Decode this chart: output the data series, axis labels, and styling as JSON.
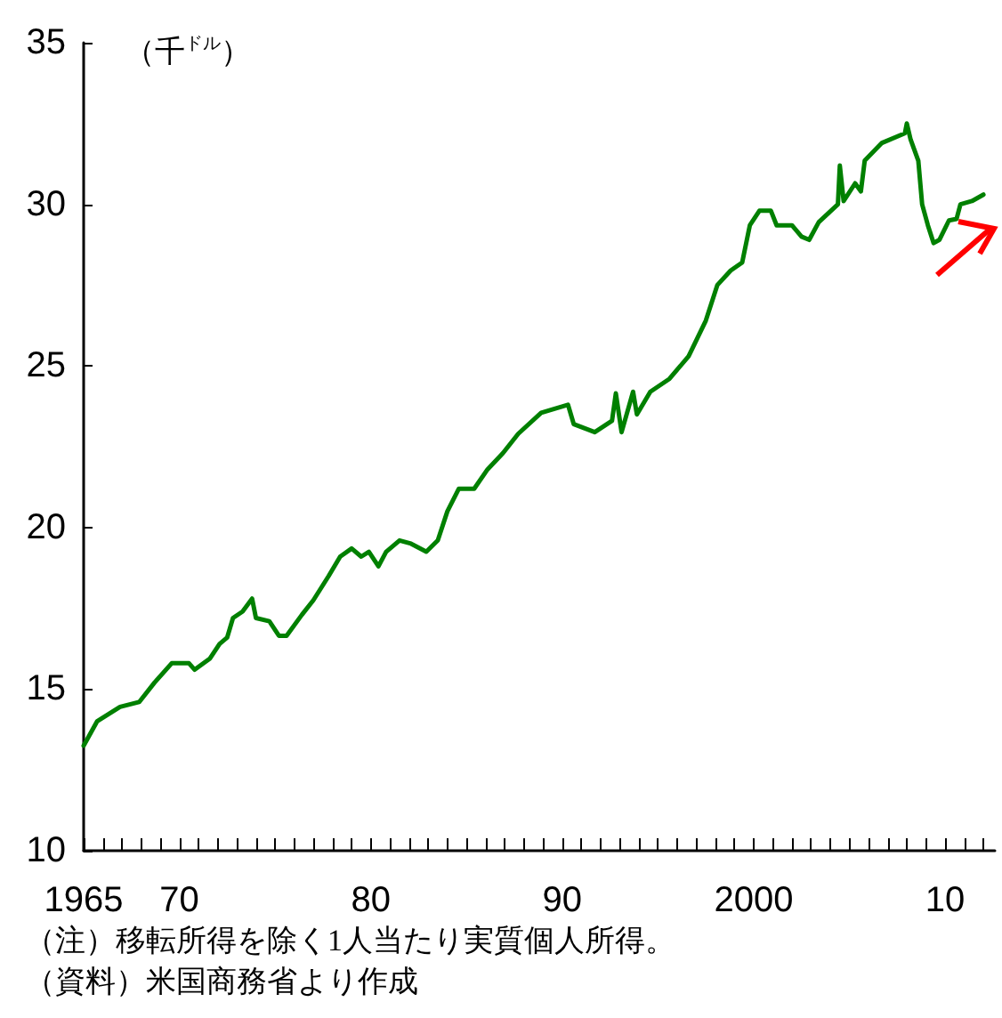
{
  "chart_data": {
    "type": "line",
    "ylabel": "（千$^{ドル}$）",
    "x": [
      1965.0,
      1965.7,
      1966.9,
      1967.9,
      1968.7,
      1969.6,
      1970.5,
      1970.8,
      1971.6,
      1972.1,
      1972.5,
      1972.8,
      1973.3,
      1973.8,
      1974.0,
      1974.7,
      1975.2,
      1975.6,
      1976.4,
      1977.0,
      1977.8,
      1978.4,
      1979.0,
      1979.5,
      1979.9,
      1980.4,
      1980.8,
      1981.5,
      1982.1,
      1982.9,
      1983.5,
      1984.0,
      1984.6,
      1985.4,
      1986.1,
      1986.9,
      1987.7,
      1988.9,
      1990.3,
      1990.6,
      1991.7,
      1992.6,
      1992.8,
      1993.1,
      1993.7,
      1993.9,
      1994.6,
      1995.6,
      1996.6,
      1997.5,
      1998.1,
      1998.8,
      1999.4,
      1999.8,
      2000.3,
      2000.9,
      2001.2,
      2002.0,
      2002.5,
      2002.9,
      2003.4,
      2004.4,
      2004.5,
      2004.7,
      2005.3,
      2005.6,
      2005.8,
      2006.7,
      2007.9,
      2008.0,
      2008.2,
      2008.6,
      2008.8,
      2009.1,
      2009.4,
      2009.7,
      2010.2,
      2010.6,
      2010.8,
      2011.4,
      2012.0
    ],
    "series": [
      {
        "color": "#008000",
        "values": [
          13.25,
          14.0,
          14.45,
          14.6,
          15.2,
          15.8,
          15.8,
          15.6,
          15.95,
          16.4,
          16.6,
          17.2,
          17.4,
          17.8,
          17.2,
          17.1,
          16.65,
          16.65,
          17.3,
          17.75,
          18.5,
          19.1,
          19.35,
          19.1,
          19.25,
          18.8,
          19.25,
          19.6,
          19.5,
          19.25,
          19.6,
          20.5,
          21.2,
          21.2,
          21.8,
          22.3,
          22.9,
          23.55,
          23.8,
          23.2,
          22.95,
          23.3,
          24.15,
          22.95,
          24.2,
          23.5,
          24.2,
          24.6,
          25.3,
          26.4,
          27.5,
          27.95,
          28.2,
          29.35,
          29.8,
          29.8,
          29.35,
          29.35,
          29.0,
          28.9,
          29.45,
          30.0,
          31.2,
          30.1,
          30.65,
          30.4,
          31.35,
          31.9,
          32.2,
          32.5,
          32.0,
          31.35,
          30.0,
          29.35,
          28.8,
          28.9,
          29.5,
          29.55,
          30.0,
          30.1,
          30.3
        ]
      }
    ],
    "xlim": [
      1965,
      2012.6
    ],
    "xticks": [
      1965,
      {
        "value": 1966,
        "label": null
      },
      {
        "value": 1967,
        "label": null
      },
      {
        "value": 1968,
        "label": null
      },
      {
        "value": 1969,
        "label": null
      },
      {
        "value": 1970,
        "label": "70"
      },
      {
        "value": 1971,
        "label": null
      },
      {
        "value": 1972,
        "label": null
      },
      {
        "value": 1973,
        "label": null
      },
      {
        "value": 1974,
        "label": null
      },
      {
        "value": 1975,
        "label": null
      },
      {
        "value": 1976,
        "label": null
      },
      {
        "value": 1977,
        "label": null
      },
      {
        "value": 1978,
        "label": null
      },
      {
        "value": 1979,
        "label": null
      },
      {
        "value": 1980,
        "label": "80"
      },
      {
        "value": 1981,
        "label": null
      },
      {
        "value": 1982,
        "label": null
      },
      {
        "value": 1983,
        "label": null
      },
      {
        "value": 1984,
        "label": null
      },
      {
        "value": 1985,
        "label": null
      },
      {
        "value": 1986,
        "label": null
      },
      {
        "value": 1987,
        "label": null
      },
      {
        "value": 1988,
        "label": null
      },
      {
        "value": 1989,
        "label": null
      },
      {
        "value": 1990,
        "label": "90"
      },
      {
        "value": 1991,
        "label": null
      },
      {
        "value": 1992,
        "label": null
      },
      {
        "value": 1993,
        "label": null
      },
      {
        "value": 1994,
        "label": null
      },
      {
        "value": 1995,
        "label": null
      },
      {
        "value": 1996,
        "label": null
      },
      {
        "value": 1997,
        "label": null
      },
      {
        "value": 1998,
        "label": null
      },
      {
        "value": 1999,
        "label": null
      },
      {
        "value": 2000,
        "label": "2000"
      },
      {
        "value": 2001,
        "label": null
      },
      {
        "value": 2002,
        "label": null
      },
      {
        "value": 2003,
        "label": null
      },
      {
        "value": 2004,
        "label": null
      },
      {
        "value": 2005,
        "label": null
      },
      {
        "value": 2006,
        "label": null
      },
      {
        "value": 2007,
        "label": null
      },
      {
        "value": 2008,
        "label": null
      },
      {
        "value": 2009,
        "label": null
      },
      {
        "value": 2010,
        "label": "10"
      },
      {
        "value": 2011,
        "label": null
      },
      {
        "value": 2012,
        "label": null
      }
    ],
    "ylim": [
      10,
      35
    ],
    "yticks": [
      10,
      15,
      20,
      25,
      30,
      35
    ],
    "grid": false,
    "marker": "none",
    "line_style": "solid",
    "annotations": [
      "（注）移転所得を除く1人当たり実質個人所得。",
      "（資料）米国商務省より作成"
    ]
  }
}
